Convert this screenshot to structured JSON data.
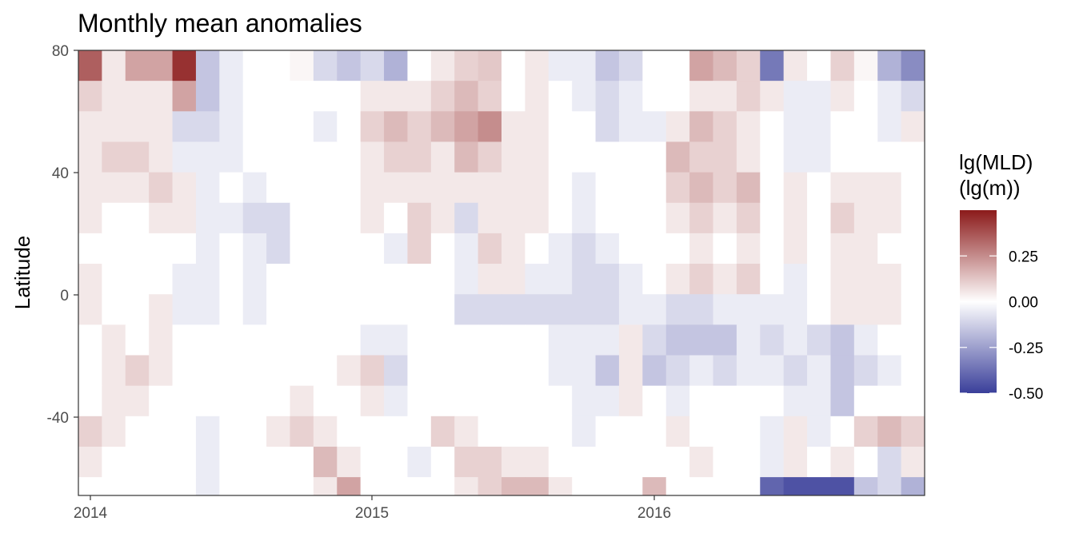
{
  "chart_data": {
    "type": "heatmap",
    "title": "Monthly mean anomalies",
    "xlabel": "",
    "ylabel": "Latitude",
    "x_ticks": [
      "2014",
      "2015",
      "2016"
    ],
    "y_ticks": [
      "80",
      "40",
      "0",
      "-40"
    ],
    "xlim": [
      "2013-12",
      "2016-12"
    ],
    "ylim": [
      -66,
      80
    ],
    "months": [
      "2014-01",
      "2014-02",
      "2014-03",
      "2014-04",
      "2014-05",
      "2014-06",
      "2014-07",
      "2014-08",
      "2014-09",
      "2014-10",
      "2014-11",
      "2014-12",
      "2015-01",
      "2015-02",
      "2015-03",
      "2015-04",
      "2015-05",
      "2015-06",
      "2015-07",
      "2015-08",
      "2015-09",
      "2015-10",
      "2015-11",
      "2015-12",
      "2016-01",
      "2016-02",
      "2016-03",
      "2016-04",
      "2016-05",
      "2016-06",
      "2016-07",
      "2016-08",
      "2016-09",
      "2016-10",
      "2016-11",
      "2016-12"
    ],
    "lat_bands": [
      80,
      70,
      60,
      50,
      40,
      30,
      20,
      10,
      0,
      -10,
      -20,
      -30,
      -40,
      -50,
      -60
    ],
    "values": [
      [
        0.35,
        0.05,
        0.2,
        0.2,
        0.45,
        -0.15,
        -0.05,
        0.0,
        0.0,
        0.02,
        -0.1,
        -0.15,
        -0.1,
        -0.2,
        0.0,
        0.05,
        0.1,
        0.12,
        0.0,
        0.05,
        -0.05,
        -0.05,
        -0.15,
        -0.1,
        0.0,
        0.0,
        0.2,
        0.15,
        0.1,
        -0.35,
        0.05,
        0.0,
        0.1,
        0.02,
        -0.2,
        -0.3
      ],
      [
        0.1,
        0.05,
        0.05,
        0.05,
        0.2,
        -0.15,
        -0.05,
        0.0,
        0.0,
        0.0,
        0.0,
        0.0,
        0.05,
        0.05,
        0.05,
        0.1,
        0.15,
        0.1,
        0.0,
        0.05,
        0.0,
        -0.05,
        -0.1,
        -0.05,
        0.0,
        0.0,
        0.05,
        0.05,
        0.1,
        0.05,
        -0.05,
        -0.05,
        0.05,
        0.0,
        -0.05,
        -0.1
      ],
      [
        0.05,
        0.05,
        0.05,
        0.05,
        -0.1,
        -0.1,
        -0.05,
        0.0,
        0.0,
        0.0,
        -0.05,
        0.0,
        0.1,
        0.15,
        0.1,
        0.15,
        0.2,
        0.25,
        0.05,
        0.05,
        0.0,
        0.0,
        -0.1,
        -0.05,
        -0.05,
        0.05,
        0.15,
        0.1,
        0.05,
        0.0,
        -0.05,
        -0.05,
        0.0,
        0.0,
        -0.05,
        0.05
      ],
      [
        0.05,
        0.1,
        0.1,
        0.05,
        -0.05,
        -0.05,
        -0.05,
        0.0,
        0.0,
        0.0,
        0.0,
        0.0,
        0.05,
        0.1,
        0.1,
        0.05,
        0.15,
        0.1,
        0.05,
        0.05,
        0.0,
        0.0,
        0.0,
        0.0,
        0.0,
        0.15,
        0.1,
        0.1,
        0.05,
        0.0,
        -0.05,
        -0.05,
        0.0,
        0.0,
        0.0,
        0.0
      ],
      [
        0.05,
        0.05,
        0.05,
        0.1,
        0.05,
        -0.05,
        0.0,
        -0.05,
        0.0,
        0.0,
        0.0,
        0.0,
        0.05,
        0.05,
        0.05,
        0.05,
        0.05,
        0.05,
        0.05,
        0.05,
        0.0,
        -0.05,
        0.0,
        0.0,
        0.0,
        0.1,
        0.15,
        0.1,
        0.15,
        0.0,
        0.05,
        0.0,
        0.05,
        0.05,
        0.05,
        0.0
      ],
      [
        0.05,
        0.0,
        0.0,
        0.05,
        0.05,
        -0.05,
        -0.05,
        -0.1,
        -0.1,
        0.0,
        0.0,
        0.0,
        0.05,
        0.0,
        0.1,
        0.05,
        -0.1,
        0.05,
        0.05,
        0.05,
        0.0,
        -0.05,
        0.0,
        0.0,
        0.0,
        0.05,
        0.1,
        0.05,
        0.1,
        0.0,
        0.05,
        0.0,
        0.1,
        0.05,
        0.05,
        0.0
      ],
      [
        0.0,
        0.0,
        0.0,
        0.0,
        0.0,
        -0.05,
        0.0,
        -0.05,
        -0.1,
        0.0,
        0.0,
        0.0,
        0.0,
        -0.05,
        0.1,
        0.0,
        -0.05,
        0.1,
        0.05,
        0.0,
        -0.05,
        -0.1,
        -0.05,
        0.0,
        0.0,
        0.0,
        0.05,
        0.0,
        0.05,
        0.0,
        0.05,
        0.0,
        0.05,
        0.05,
        0.0,
        0.0
      ],
      [
        0.05,
        0.0,
        0.0,
        0.0,
        -0.05,
        -0.05,
        0.0,
        -0.05,
        0.0,
        0.0,
        0.0,
        0.0,
        0.0,
        0.0,
        0.0,
        0.0,
        -0.05,
        0.05,
        0.05,
        -0.05,
        -0.05,
        -0.1,
        -0.1,
        -0.05,
        0.0,
        0.05,
        0.1,
        0.05,
        0.1,
        0.0,
        -0.05,
        0.0,
        0.05,
        0.05,
        0.05,
        0.0
      ],
      [
        0.05,
        0.0,
        0.0,
        0.05,
        -0.05,
        -0.05,
        0.0,
        -0.05,
        0.0,
        0.0,
        0.0,
        0.0,
        0.0,
        0.0,
        0.0,
        0.0,
        -0.1,
        -0.1,
        -0.1,
        -0.1,
        -0.1,
        -0.1,
        -0.1,
        -0.05,
        -0.05,
        -0.1,
        -0.1,
        -0.05,
        -0.05,
        -0.05,
        -0.05,
        0.0,
        0.05,
        0.05,
        0.05,
        0.0
      ],
      [
        0.0,
        0.05,
        0.0,
        0.05,
        0.0,
        0.0,
        0.0,
        0.0,
        0.0,
        0.0,
        0.0,
        0.0,
        -0.05,
        -0.05,
        0.0,
        0.0,
        0.0,
        0.0,
        0.0,
        0.0,
        -0.05,
        -0.05,
        -0.05,
        0.05,
        -0.1,
        -0.15,
        -0.15,
        -0.15,
        -0.05,
        -0.1,
        -0.05,
        -0.1,
        -0.15,
        -0.05,
        0.0,
        0.0
      ],
      [
        0.0,
        0.05,
        0.1,
        0.05,
        0.0,
        0.0,
        0.0,
        0.0,
        0.0,
        0.0,
        0.0,
        0.05,
        0.1,
        -0.1,
        0.0,
        0.0,
        0.0,
        0.0,
        0.0,
        0.0,
        -0.05,
        -0.05,
        -0.15,
        0.05,
        -0.15,
        -0.1,
        -0.05,
        -0.1,
        -0.05,
        -0.05,
        -0.1,
        -0.05,
        -0.15,
        -0.1,
        -0.05,
        0.0
      ],
      [
        0.0,
        0.05,
        0.05,
        0.0,
        0.0,
        0.0,
        0.0,
        0.0,
        0.0,
        0.05,
        0.0,
        0.0,
        0.05,
        -0.05,
        0.0,
        0.0,
        0.0,
        0.0,
        0.0,
        0.0,
        0.0,
        -0.05,
        -0.05,
        0.05,
        0.0,
        -0.05,
        0.0,
        0.0,
        0.0,
        0.0,
        -0.05,
        -0.05,
        -0.15,
        0.0,
        0.0,
        0.0
      ],
      [
        0.1,
        0.05,
        0.0,
        0.0,
        0.0,
        -0.05,
        0.0,
        0.0,
        0.05,
        0.1,
        0.05,
        0.0,
        0.0,
        0.0,
        0.0,
        0.1,
        0.05,
        0.0,
        0.0,
        0.0,
        0.0,
        -0.05,
        0.0,
        0.0,
        0.0,
        0.05,
        0.0,
        0.0,
        0.0,
        -0.05,
        0.05,
        -0.05,
        0.0,
        0.1,
        0.15,
        0.1
      ],
      [
        0.05,
        0.0,
        0.0,
        0.0,
        0.0,
        -0.05,
        0.0,
        0.0,
        0.0,
        0.0,
        0.15,
        0.05,
        0.0,
        0.0,
        -0.05,
        0.0,
        0.1,
        0.1,
        0.05,
        0.05,
        0.0,
        0.0,
        0.0,
        0.0,
        0.0,
        0.0,
        0.05,
        0.0,
        0.0,
        -0.05,
        0.05,
        0.0,
        0.05,
        0.0,
        -0.1,
        0.05
      ],
      [
        0.0,
        0.0,
        0.0,
        0.0,
        0.0,
        -0.05,
        0.0,
        0.0,
        0.0,
        0.0,
        0.05,
        0.2,
        0.0,
        0.0,
        0.0,
        0.0,
        0.05,
        0.1,
        0.15,
        0.15,
        0.05,
        0.0,
        0.0,
        0.0,
        0.15,
        0.0,
        0.0,
        0.0,
        0.0,
        -0.4,
        -0.45,
        -0.45,
        -0.45,
        -0.15,
        -0.1,
        -0.2
      ]
    ],
    "legend": {
      "title_line1": "lg(MLD)",
      "title_line2": "(lg(m))",
      "labels": [
        "0.25",
        "0.00",
        "-0.25",
        "-0.50"
      ],
      "tick_values": [
        0.25,
        0.0,
        -0.25,
        -0.5
      ],
      "range": [
        -0.5,
        0.5
      ],
      "colors": {
        "low": "#3a3f9a",
        "mid": "#ffffff",
        "high": "#8b1a1a"
      }
    }
  }
}
